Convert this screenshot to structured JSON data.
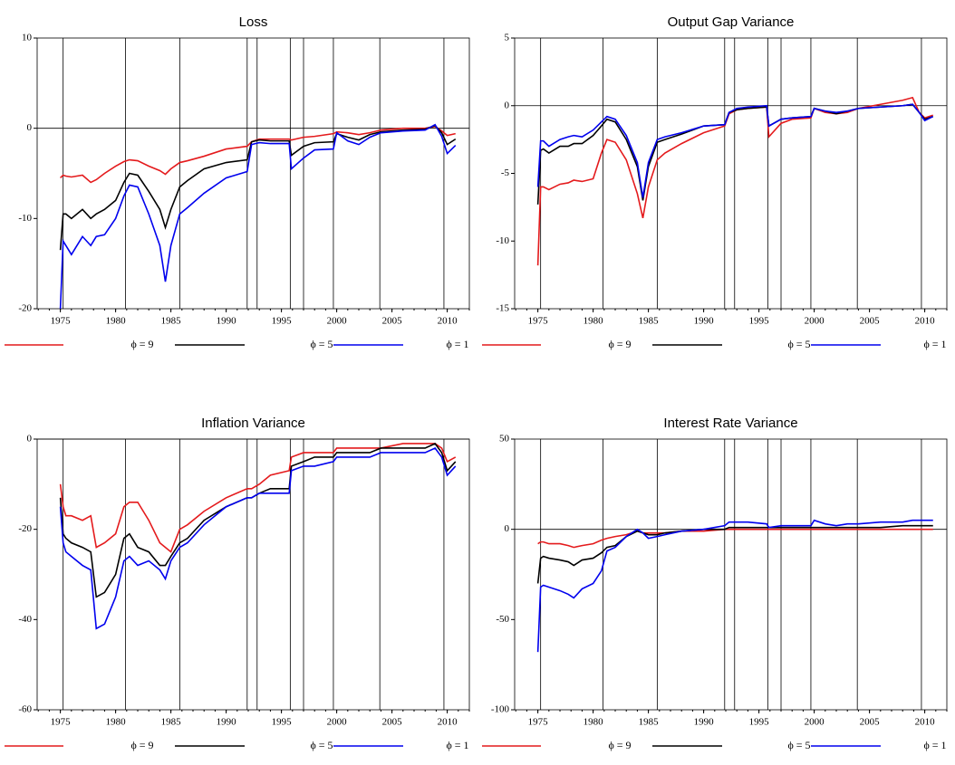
{
  "chart_data": [
    {
      "type": "line",
      "title": "Loss",
      "x": [
        1975.0,
        1975.25,
        1975.5,
        1976,
        1977,
        1977.75,
        1978.25,
        1979,
        1980,
        1980.75,
        1981.25,
        1982,
        1983,
        1984,
        1984.5,
        1985,
        1985.8,
        1986.5,
        1988,
        1990,
        1991.9,
        1992.3,
        1993,
        1994,
        1995.7,
        1995.9,
        1997,
        1998,
        1999.7,
        2000,
        2001,
        2002,
        2003,
        2004,
        2006,
        2008,
        2008.9,
        2009.5,
        2010,
        2010.75
      ],
      "series": [
        {
          "name": "ϕ = 9",
          "color": "#e41a1c",
          "values": [
            -5.5,
            -5.2,
            -5.3,
            -5.4,
            -5.2,
            -6,
            -5.7,
            -5,
            -4.2,
            -3.7,
            -3.5,
            -3.6,
            -4.2,
            -4.7,
            -5.1,
            -4.5,
            -3.8,
            -3.6,
            -3.1,
            -2.3,
            -2,
            -1.5,
            -1.2,
            -1.2,
            -1.2,
            -1.3,
            -1,
            -0.9,
            -0.6,
            -0.4,
            -0.5,
            -0.7,
            -0.5,
            -0.2,
            0,
            0,
            0.2,
            -0.3,
            -0.8,
            -0.6
          ]
        },
        {
          "name": "ϕ = 5",
          "color": "#000000",
          "values": [
            -13.5,
            -9.5,
            -9.5,
            -10,
            -9,
            -10,
            -9.5,
            -9,
            -8,
            -6,
            -5,
            -5.2,
            -7,
            -9,
            -11,
            -9,
            -6.5,
            -5.8,
            -4.5,
            -3.8,
            -3.5,
            -1.5,
            -1.3,
            -1.4,
            -1.4,
            -3,
            -2,
            -1.6,
            -1.5,
            -0.6,
            -1,
            -1.3,
            -0.7,
            -0.4,
            -0.2,
            -0.1,
            0.3,
            -0.5,
            -1.8,
            -1.2
          ]
        },
        {
          "name": "ϕ = 1",
          "color": "#0000ee",
          "values": [
            -20,
            -12.5,
            -13,
            -14,
            -12,
            -13,
            -12,
            -11.8,
            -10,
            -7.5,
            -6.3,
            -6.5,
            -9.5,
            -13,
            -17,
            -13,
            -9.5,
            -8.8,
            -7.2,
            -5.5,
            -4.8,
            -1.8,
            -1.6,
            -1.7,
            -1.7,
            -4.5,
            -3.3,
            -2.4,
            -2.3,
            -0.5,
            -1.4,
            -1.8,
            -1,
            -0.5,
            -0.3,
            -0.2,
            0.4,
            -0.9,
            -2.8,
            -1.9
          ]
        }
      ],
      "xlim": [
        1972.9,
        2012
      ],
      "xticks": [
        1975,
        1980,
        1985,
        1990,
        1995,
        2000,
        2005,
        2010
      ],
      "ylim": [
        -20,
        10
      ],
      "yticks": [
        -20,
        -10,
        0,
        10
      ],
      "reference_line": 0,
      "vlines": [
        1975.25,
        1980.9,
        1985.8,
        1991.9,
        1992.8,
        1995.8,
        1997.0,
        1999.7,
        2003.9,
        2009.7
      ]
    },
    {
      "type": "line",
      "title": "Output Gap Variance",
      "x": [
        1975.0,
        1975.25,
        1975.5,
        1976,
        1977,
        1977.75,
        1978.25,
        1979,
        1980,
        1980.75,
        1981.25,
        1982,
        1983,
        1984,
        1984.5,
        1985,
        1985.8,
        1986.5,
        1988,
        1990,
        1991.9,
        1992.3,
        1993,
        1994,
        1995.7,
        1995.9,
        1997,
        1998,
        1999.7,
        2000,
        2001,
        2002,
        2003,
        2004,
        2006,
        2008,
        2008.9,
        2009.5,
        2010,
        2010.75
      ],
      "series": [
        {
          "name": "ϕ = 9",
          "color": "#e41a1c",
          "values": [
            -11.8,
            -6,
            -6,
            -6.2,
            -5.8,
            -5.7,
            -5.5,
            -5.6,
            -5.4,
            -3.5,
            -2.5,
            -2.7,
            -4,
            -6.5,
            -8.3,
            -6,
            -4,
            -3.5,
            -2.8,
            -2,
            -1.5,
            -0.6,
            -0.3,
            -0.2,
            -0.1,
            -2.3,
            -1.3,
            -1,
            -0.9,
            -0.2,
            -0.5,
            -0.6,
            -0.5,
            -0.2,
            0.1,
            0.4,
            0.6,
            -0.5,
            -0.9,
            -0.7
          ]
        },
        {
          "name": "ϕ = 5",
          "color": "#000000",
          "values": [
            -7.3,
            -3.3,
            -3.2,
            -3.5,
            -3,
            -3,
            -2.8,
            -2.8,
            -2.2,
            -1.5,
            -1,
            -1.2,
            -2.5,
            -4.5,
            -7,
            -4.5,
            -2.7,
            -2.5,
            -2.1,
            -1.5,
            -1.4,
            -0.5,
            -0.3,
            -0.2,
            -0.1,
            -1.5,
            -1,
            -0.9,
            -0.8,
            -0.2,
            -0.4,
            -0.6,
            -0.4,
            -0.2,
            -0.1,
            0,
            0.1,
            -0.5,
            -1,
            -0.8
          ]
        },
        {
          "name": "ϕ = 1",
          "color": "#0000ee",
          "values": [
            -6,
            -2.6,
            -2.6,
            -3,
            -2.5,
            -2.3,
            -2.2,
            -2.3,
            -1.8,
            -1.2,
            -0.8,
            -1,
            -2.2,
            -4.2,
            -6.8,
            -4.2,
            -2.5,
            -2.3,
            -2,
            -1.5,
            -1.4,
            -0.5,
            -0.2,
            -0.1,
            0,
            -1.5,
            -1,
            -0.9,
            -0.8,
            -0.2,
            -0.4,
            -0.5,
            -0.4,
            -0.2,
            -0.1,
            0,
            0.1,
            -0.5,
            -1.1,
            -0.8
          ]
        }
      ],
      "xlim": [
        1972.9,
        2012
      ],
      "xticks": [
        1975,
        1980,
        1985,
        1990,
        1995,
        2000,
        2005,
        2010
      ],
      "ylim": [
        -15,
        5
      ],
      "yticks": [
        -15,
        -10,
        -5,
        0,
        5
      ],
      "reference_line": 0,
      "vlines": [
        1975.25,
        1980.9,
        1985.8,
        1991.9,
        1992.8,
        1995.8,
        1997.0,
        1999.7,
        2003.9,
        2009.7
      ]
    },
    {
      "type": "line",
      "title": "Inflation Variance",
      "x": [
        1975.0,
        1975.25,
        1975.5,
        1976,
        1977,
        1977.75,
        1978.25,
        1979,
        1980,
        1980.75,
        1981.25,
        1982,
        1983,
        1984,
        1984.5,
        1985,
        1985.8,
        1986.5,
        1988,
        1990,
        1991.9,
        1992.3,
        1993,
        1994,
        1995.7,
        1995.9,
        1997,
        1998,
        1999.7,
        2000,
        2001,
        2002,
        2003,
        2004,
        2006,
        2008,
        2008.9,
        2009.5,
        2010,
        2010.75
      ],
      "series": [
        {
          "name": "ϕ = 9",
          "color": "#e41a1c",
          "values": [
            -10,
            -15,
            -17,
            -17,
            -18,
            -17,
            -24,
            -23,
            -21,
            -15,
            -14,
            -14,
            -18,
            -23,
            -24,
            -25,
            -20,
            -19,
            -16,
            -13,
            -11,
            -11,
            -10,
            -8,
            -7,
            -4,
            -3,
            -3,
            -3,
            -2,
            -2,
            -2,
            -2,
            -2,
            -1,
            -1,
            -1,
            -2,
            -5,
            -4
          ]
        },
        {
          "name": "ϕ = 5",
          "color": "#000000",
          "values": [
            -13,
            -21,
            -22,
            -23,
            -24,
            -25,
            -35,
            -34,
            -30,
            -22,
            -21,
            -24,
            -25,
            -28,
            -28,
            -26,
            -23,
            -22,
            -18,
            -15,
            -13,
            -13,
            -12,
            -11,
            -11,
            -6,
            -5,
            -4,
            -4,
            -3,
            -3,
            -3,
            -3,
            -2,
            -2,
            -2,
            -1,
            -3,
            -7,
            -5
          ]
        },
        {
          "name": "ϕ = 1",
          "color": "#0000ee",
          "values": [
            -15,
            -23,
            -25,
            -26,
            -28,
            -29,
            -42,
            -41,
            -35,
            -27,
            -26,
            -28,
            -27,
            -29,
            -31,
            -27,
            -24,
            -23,
            -19,
            -15,
            -13,
            -13,
            -12,
            -12,
            -12,
            -7,
            -6,
            -6,
            -5,
            -4,
            -4,
            -4,
            -4,
            -3,
            -3,
            -3,
            -2,
            -4,
            -8,
            -6
          ]
        }
      ],
      "xlim": [
        1972.9,
        2012
      ],
      "xticks": [
        1975,
        1980,
        1985,
        1990,
        1995,
        2000,
        2005,
        2010
      ],
      "ylim": [
        -60,
        0
      ],
      "yticks": [
        -60,
        -40,
        -20,
        0
      ],
      "reference_line": 0,
      "vlines": [
        1975.25,
        1980.9,
        1985.8,
        1991.9,
        1992.8,
        1995.8,
        1997.0,
        1999.7,
        2003.9,
        2009.7
      ]
    },
    {
      "type": "line",
      "title": "Interest Rate Variance",
      "x": [
        1975.0,
        1975.25,
        1975.5,
        1976,
        1977,
        1977.75,
        1978.25,
        1979,
        1980,
        1980.75,
        1981.25,
        1982,
        1983,
        1984,
        1984.5,
        1985,
        1985.8,
        1986.5,
        1988,
        1990,
        1991.9,
        1992.3,
        1993,
        1994,
        1995.7,
        1995.9,
        1997,
        1998,
        1999.7,
        2000,
        2001,
        2002,
        2003,
        2004,
        2006,
        2008,
        2008.9,
        2009.5,
        2010,
        2010.75
      ],
      "series": [
        {
          "name": "ϕ = 9",
          "color": "#e41a1c",
          "values": [
            -8,
            -7,
            -7,
            -8,
            -8,
            -9,
            -10,
            -9,
            -8,
            -6,
            -5,
            -4,
            -3,
            -1,
            -2,
            -2,
            -2,
            -2,
            -1,
            -1,
            0,
            0,
            0,
            0,
            0,
            0,
            0,
            0,
            0,
            0,
            0,
            0,
            0,
            0,
            0,
            0,
            0,
            0,
            0,
            0
          ]
        },
        {
          "name": "ϕ = 5",
          "color": "#000000",
          "values": [
            -30,
            -16,
            -15,
            -16,
            -17,
            -18,
            -20,
            -17,
            -16,
            -13,
            -10,
            -9,
            -4,
            -1,
            -2,
            -3,
            -3,
            -2,
            -1,
            0,
            0,
            1,
            1,
            1,
            1,
            1,
            1,
            1,
            1,
            1,
            1,
            1,
            1,
            1,
            1,
            2,
            2,
            2,
            2,
            2
          ]
        },
        {
          "name": "ϕ = 1",
          "color": "#0000ee",
          "values": [
            -68,
            -32,
            -31,
            -32,
            -34,
            -36,
            -38,
            -33,
            -30,
            -23,
            -12,
            -10,
            -4,
            0,
            -2,
            -5,
            -4,
            -3,
            -1,
            0,
            2,
            4,
            4,
            4,
            3,
            1,
            2,
            2,
            2,
            5,
            3,
            2,
            3,
            3,
            4,
            4,
            5,
            5,
            5,
            5
          ]
        }
      ],
      "xlim": [
        1972.9,
        2012
      ],
      "xticks": [
        1975,
        1980,
        1985,
        1990,
        1995,
        2000,
        2005,
        2010
      ],
      "ylim": [
        -100,
        50
      ],
      "yticks": [
        -100,
        -50,
        0,
        50
      ],
      "reference_line": 0,
      "vlines": [
        1975.25,
        1980.9,
        1985.8,
        1991.9,
        1992.8,
        1995.8,
        1997.0,
        1999.7,
        2003.9,
        2009.7
      ]
    }
  ]
}
